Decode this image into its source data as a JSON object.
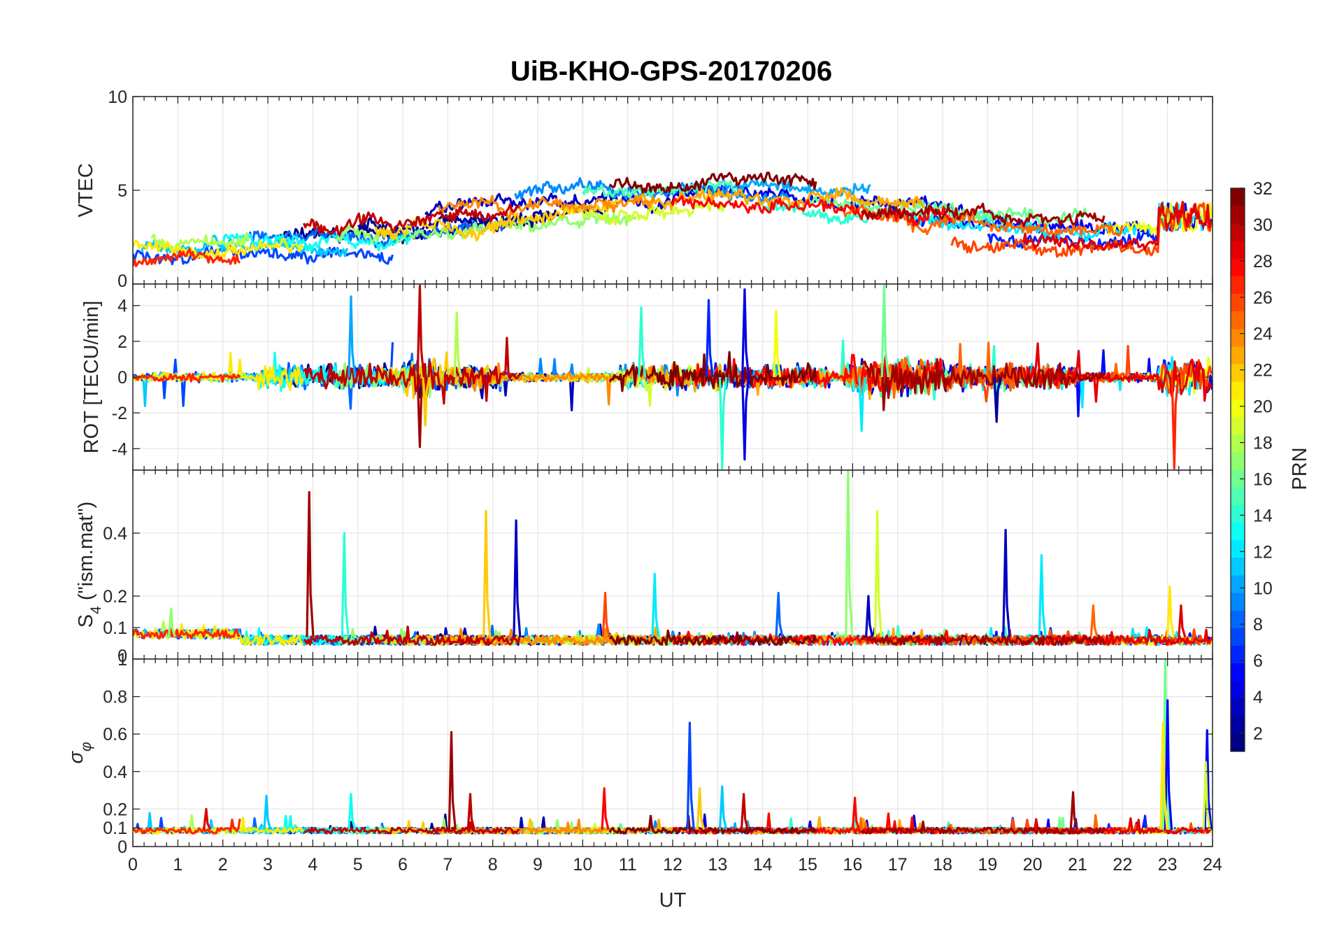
{
  "chart_data": {
    "type": "line",
    "title": "UiB-KHO-GPS-20170206",
    "xlabel": "UT",
    "xlim": [
      0,
      24
    ],
    "x_ticks": [
      "0",
      "1",
      "2",
      "3",
      "4",
      "5",
      "6",
      "7",
      "8",
      "9",
      "10",
      "11",
      "12",
      "13",
      "14",
      "15",
      "16",
      "17",
      "18",
      "19",
      "20",
      "21",
      "22",
      "23",
      "24"
    ],
    "grid": true,
    "colorbar": {
      "label": "PRN",
      "colormap": "jet",
      "range": [
        1,
        32
      ],
      "ticks": [
        "2",
        "4",
        "6",
        "8",
        "10",
        "12",
        "14",
        "16",
        "18",
        "20",
        "22",
        "24",
        "26",
        "28",
        "30",
        "32"
      ],
      "placement": "right"
    },
    "panels": [
      {
        "id": "vtec",
        "ylabel": "VTEC",
        "ylim": [
          0,
          10
        ],
        "y_ticks": [
          "0",
          "5",
          "10"
        ],
        "y_tick_values": [
          0,
          5,
          10
        ],
        "profile": "vtec"
      },
      {
        "id": "rot",
        "ylabel": "ROT [TECU/min]",
        "ylim": [
          -5.2,
          5.2
        ],
        "y_ticks": [
          "-4",
          "-2",
          "0",
          "2",
          "4"
        ],
        "y_tick_values": [
          -4,
          -2,
          0,
          2,
          4
        ],
        "profile": "rot",
        "spikes": [
          {
            "prn": 10,
            "x": 4.85,
            "y": 4.5
          },
          {
            "prn": 30,
            "x": 6.38,
            "y": 5.1
          },
          {
            "prn": 31,
            "x": 6.38,
            "y": -3.9
          },
          {
            "prn": 18,
            "x": 7.2,
            "y": 3.6
          },
          {
            "prn": 14,
            "x": 11.3,
            "y": 3.9
          },
          {
            "prn": 6,
            "x": 12.8,
            "y": 4.3
          },
          {
            "prn": 4,
            "x": 13.6,
            "y": 4.9
          },
          {
            "prn": 4,
            "x": 13.6,
            "y": -4.6
          },
          {
            "prn": 14,
            "x": 13.1,
            "y": -5.1
          },
          {
            "prn": 16,
            "x": 16.7,
            "y": 5.1
          },
          {
            "prn": 20,
            "x": 14.3,
            "y": 3.7
          },
          {
            "prn": 2,
            "x": 19.2,
            "y": -2.5
          },
          {
            "prn": 27,
            "x": 23.15,
            "y": -5.1
          },
          {
            "prn": 12,
            "x": 16.2,
            "y": -3.0
          },
          {
            "prn": 22,
            "x": 6.5,
            "y": -2.7
          }
        ]
      },
      {
        "id": "s4",
        "ylabel": "S4 (\"ism.mat\")",
        "ylabel_main": "S",
        "ylabel_sub": "4",
        "ylabel_rest": " (\"ism.mat\")",
        "ylim": [
          0,
          0.6
        ],
        "y_ticks": [
          "0",
          "0.1",
          "0.2",
          "0.4"
        ],
        "y_tick_values": [
          0,
          0.1,
          0.2,
          0.4
        ],
        "profile": "s4",
        "spikes": [
          {
            "prn": 31,
            "x": 3.92,
            "y": 0.53
          },
          {
            "prn": 14,
            "x": 4.7,
            "y": 0.4
          },
          {
            "prn": 22,
            "x": 7.85,
            "y": 0.47
          },
          {
            "prn": 3,
            "x": 8.52,
            "y": 0.44
          },
          {
            "prn": 12,
            "x": 11.6,
            "y": 0.27
          },
          {
            "prn": 26,
            "x": 10.5,
            "y": 0.21
          },
          {
            "prn": 8,
            "x": 14.35,
            "y": 0.21
          },
          {
            "prn": 17,
            "x": 15.9,
            "y": 0.6
          },
          {
            "prn": 19,
            "x": 16.55,
            "y": 0.47
          },
          {
            "prn": 3,
            "x": 16.35,
            "y": 0.2
          },
          {
            "prn": 3,
            "x": 19.4,
            "y": 0.41
          },
          {
            "prn": 12,
            "x": 20.2,
            "y": 0.33
          },
          {
            "prn": 21,
            "x": 23.05,
            "y": 0.23
          },
          {
            "prn": 29,
            "x": 23.3,
            "y": 0.17
          },
          {
            "prn": 25,
            "x": 21.35,
            "y": 0.17
          },
          {
            "prn": 17,
            "x": 0.85,
            "y": 0.16
          }
        ]
      },
      {
        "id": "sigma",
        "ylabel": "σφ",
        "ylabel_main": "σ",
        "ylabel_sub": "φ",
        "ylim": [
          0,
          1
        ],
        "y_ticks": [
          "0",
          "0.1",
          "0.2",
          "0.4",
          "0.6",
          "0.8",
          "1"
        ],
        "y_tick_values": [
          0,
          0.1,
          0.2,
          0.4,
          0.6,
          0.8,
          1
        ],
        "profile": "sigma",
        "spikes": [
          {
            "prn": 31,
            "x": 7.08,
            "y": 0.61
          },
          {
            "prn": 7,
            "x": 12.38,
            "y": 0.66
          },
          {
            "prn": 16,
            "x": 22.95,
            "y": 1.0
          },
          {
            "prn": 5,
            "x": 23.0,
            "y": 0.78
          },
          {
            "prn": 21,
            "x": 22.9,
            "y": 0.66
          },
          {
            "prn": 5,
            "x": 23.88,
            "y": 0.62
          },
          {
            "prn": 11,
            "x": 2.97,
            "y": 0.27
          },
          {
            "prn": 13,
            "x": 4.85,
            "y": 0.28
          },
          {
            "prn": 28,
            "x": 10.48,
            "y": 0.31
          },
          {
            "prn": 11,
            "x": 13.1,
            "y": 0.32
          },
          {
            "prn": 30,
            "x": 13.58,
            "y": 0.28
          },
          {
            "prn": 31,
            "x": 20.9,
            "y": 0.29
          },
          {
            "prn": 28,
            "x": 16.05,
            "y": 0.26
          },
          {
            "prn": 29,
            "x": 1.63,
            "y": 0.2
          },
          {
            "prn": 30,
            "x": 7.5,
            "y": 0.28
          },
          {
            "prn": 22,
            "x": 12.6,
            "y": 0.31
          },
          {
            "prn": 19,
            "x": 23.85,
            "y": 0.45
          }
        ]
      }
    ],
    "series": [
      {
        "prn": 1,
        "start": 3.2,
        "end": 9.4,
        "level": 3.2
      },
      {
        "prn": 2,
        "start": 5.0,
        "end": 10.6,
        "level": 4.0
      },
      {
        "prn": 3,
        "start": 6.5,
        "end": 12.6,
        "level": 4.6
      },
      {
        "prn": 4,
        "start": 11.8,
        "end": 18.5,
        "level": 5.0
      },
      {
        "prn": 5,
        "start": 17.2,
        "end": 24.0,
        "level": 3.6
      },
      {
        "prn": 6,
        "start": 19.0,
        "end": 23.4,
        "level": 2.6
      },
      {
        "prn": 7,
        "start": 0.0,
        "end": 5.8,
        "level": 1.8
      },
      {
        "prn": 8,
        "start": 2.6,
        "end": 8.4,
        "level": 3.4
      },
      {
        "prn": 9,
        "start": 8.5,
        "end": 14.6,
        "level": 5.4
      },
      {
        "prn": 10,
        "start": 13.0,
        "end": 16.4,
        "level": 5.6
      },
      {
        "prn": 11,
        "start": 0.2,
        "end": 4.8,
        "level": 2.2
      },
      {
        "prn": 12,
        "start": 17.5,
        "end": 23.8,
        "level": 3.8
      },
      {
        "prn": 13,
        "start": 2.0,
        "end": 6.2,
        "level": 2.8
      },
      {
        "prn": 14,
        "start": 14.0,
        "end": 19.5,
        "level": 4.3
      },
      {
        "prn": 15,
        "start": 10.0,
        "end": 13.4,
        "level": 5.5
      },
      {
        "prn": 16,
        "start": 15.0,
        "end": 21.2,
        "level": 4.8
      },
      {
        "prn": 17,
        "start": 4.5,
        "end": 11.2,
        "level": 3.0
      },
      {
        "prn": 18,
        "start": 0.4,
        "end": 2.6,
        "level": 3.2
      },
      {
        "prn": 19,
        "start": 9.5,
        "end": 13.2,
        "level": 4.0
      },
      {
        "prn": 20,
        "start": 21.6,
        "end": 24.0,
        "level": 3.6
      },
      {
        "prn": 21,
        "start": 0.0,
        "end": 3.8,
        "level": 2.4
      },
      {
        "prn": 22,
        "start": 5.4,
        "end": 10.8,
        "level": 3.6
      },
      {
        "prn": 23,
        "start": 11.2,
        "end": 17.6,
        "level": 4.6
      },
      {
        "prn": 24,
        "start": 6.8,
        "end": 11.6,
        "level": 4.8
      },
      {
        "prn": 25,
        "start": 15.8,
        "end": 22.0,
        "level": 3.6
      },
      {
        "prn": 26,
        "start": 18.2,
        "end": 24.0,
        "level": 2.4
      },
      {
        "prn": 27,
        "start": 0.0,
        "end": 2.4,
        "level": 1.2
      },
      {
        "prn": 28,
        "start": 12.0,
        "end": 18.2,
        "level": 4.2
      },
      {
        "prn": 29,
        "start": 19.8,
        "end": 24.0,
        "level": 2.6
      },
      {
        "prn": 30,
        "start": 3.8,
        "end": 8.6,
        "level": 4.2
      },
      {
        "prn": 31,
        "start": 16.2,
        "end": 21.6,
        "level": 4.4
      },
      {
        "prn": 32,
        "start": 10.6,
        "end": 15.2,
        "level": 6.0
      }
    ]
  }
}
